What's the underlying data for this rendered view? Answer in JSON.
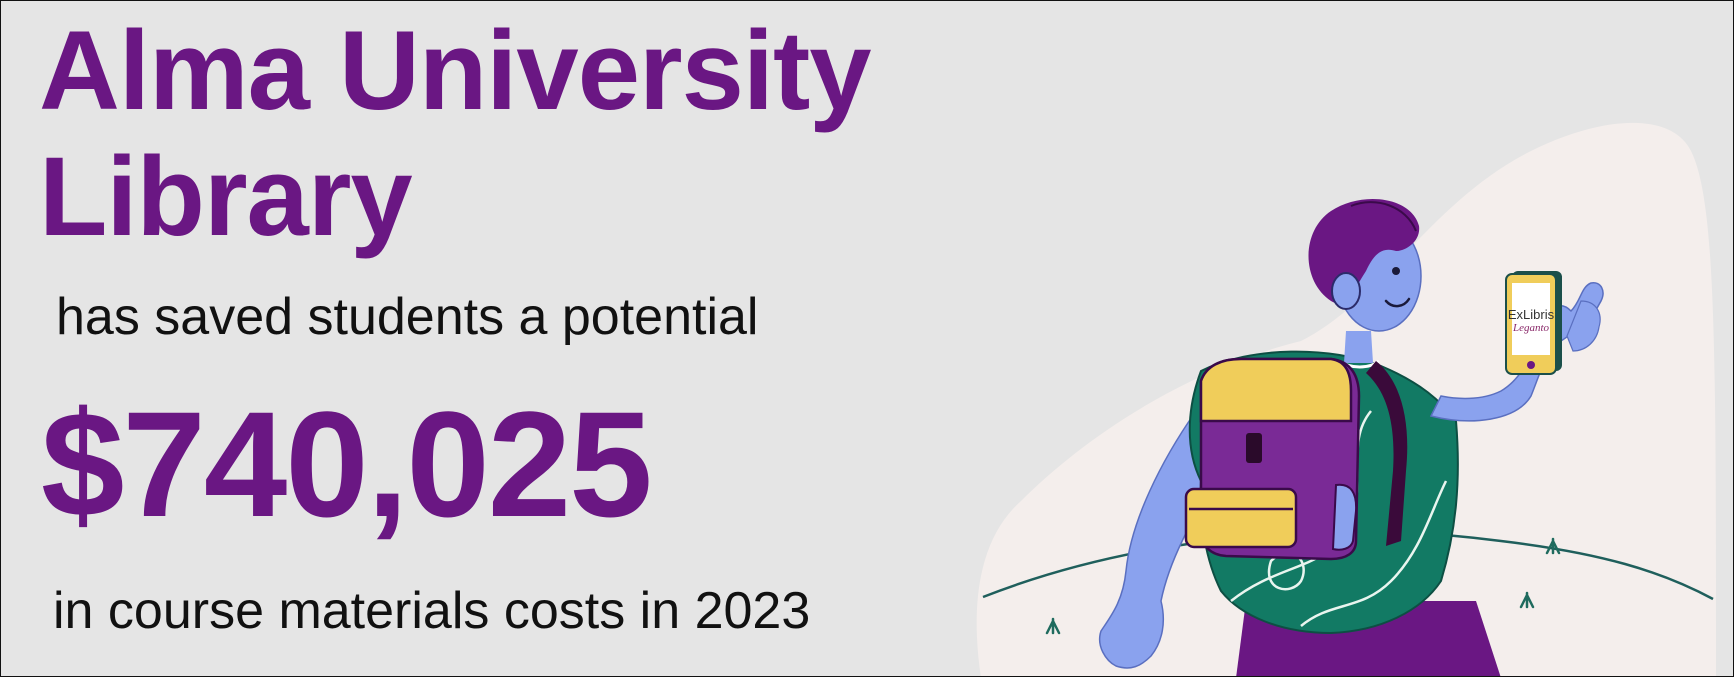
{
  "headline": {
    "line1": "Alma University",
    "line2": "Library"
  },
  "intro_text": "has saved students a potential",
  "amount": "$740,025",
  "outro_text": "in course materials costs in 2023",
  "illustration": {
    "phone_brand": "ExLibris",
    "phone_product": "Leganto"
  },
  "colors": {
    "background": "#e5e5e5",
    "brand_purple": "#6a1783",
    "text": "#111111",
    "blob": "#f4eeec",
    "skin": "#8aa2ee",
    "shirt": "#127a64",
    "backpack_yellow": "#f0cd5a"
  }
}
